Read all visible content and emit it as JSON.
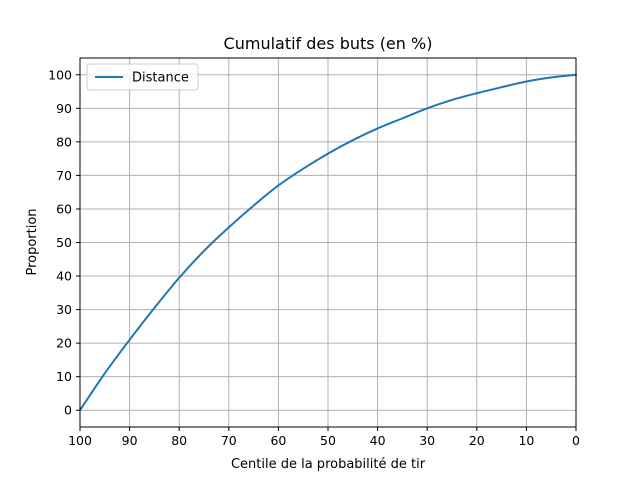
{
  "chart_data": {
    "type": "line",
    "title": "Cumulatif des buts (en %)",
    "xlabel": "Centile de la probabilité de tir",
    "ylabel": "Proportion",
    "xlim": [
      100,
      0
    ],
    "ylim": [
      -5,
      105
    ],
    "x_reversed": true,
    "grid": true,
    "legend_position": "top-left",
    "xticks": [
      "100",
      "90",
      "80",
      "70",
      "60",
      "50",
      "40",
      "30",
      "20",
      "10",
      "0"
    ],
    "yticks": [
      "0",
      "10",
      "20",
      "30",
      "40",
      "50",
      "60",
      "70",
      "80",
      "90",
      "100"
    ],
    "series": [
      {
        "name": "Distance",
        "color": "#1f77b4",
        "x": [
          100,
          95,
          90,
          85,
          80,
          75,
          70,
          65,
          60,
          55,
          50,
          45,
          40,
          35,
          30,
          25,
          20,
          15,
          10,
          5,
          0
        ],
        "y": [
          0,
          11,
          21,
          30.5,
          39.5,
          47.5,
          54.5,
          61,
          67,
          72,
          76.5,
          80.5,
          84,
          87,
          90,
          92.5,
          94.5,
          96.3,
          98,
          99.2,
          100
        ]
      }
    ]
  }
}
